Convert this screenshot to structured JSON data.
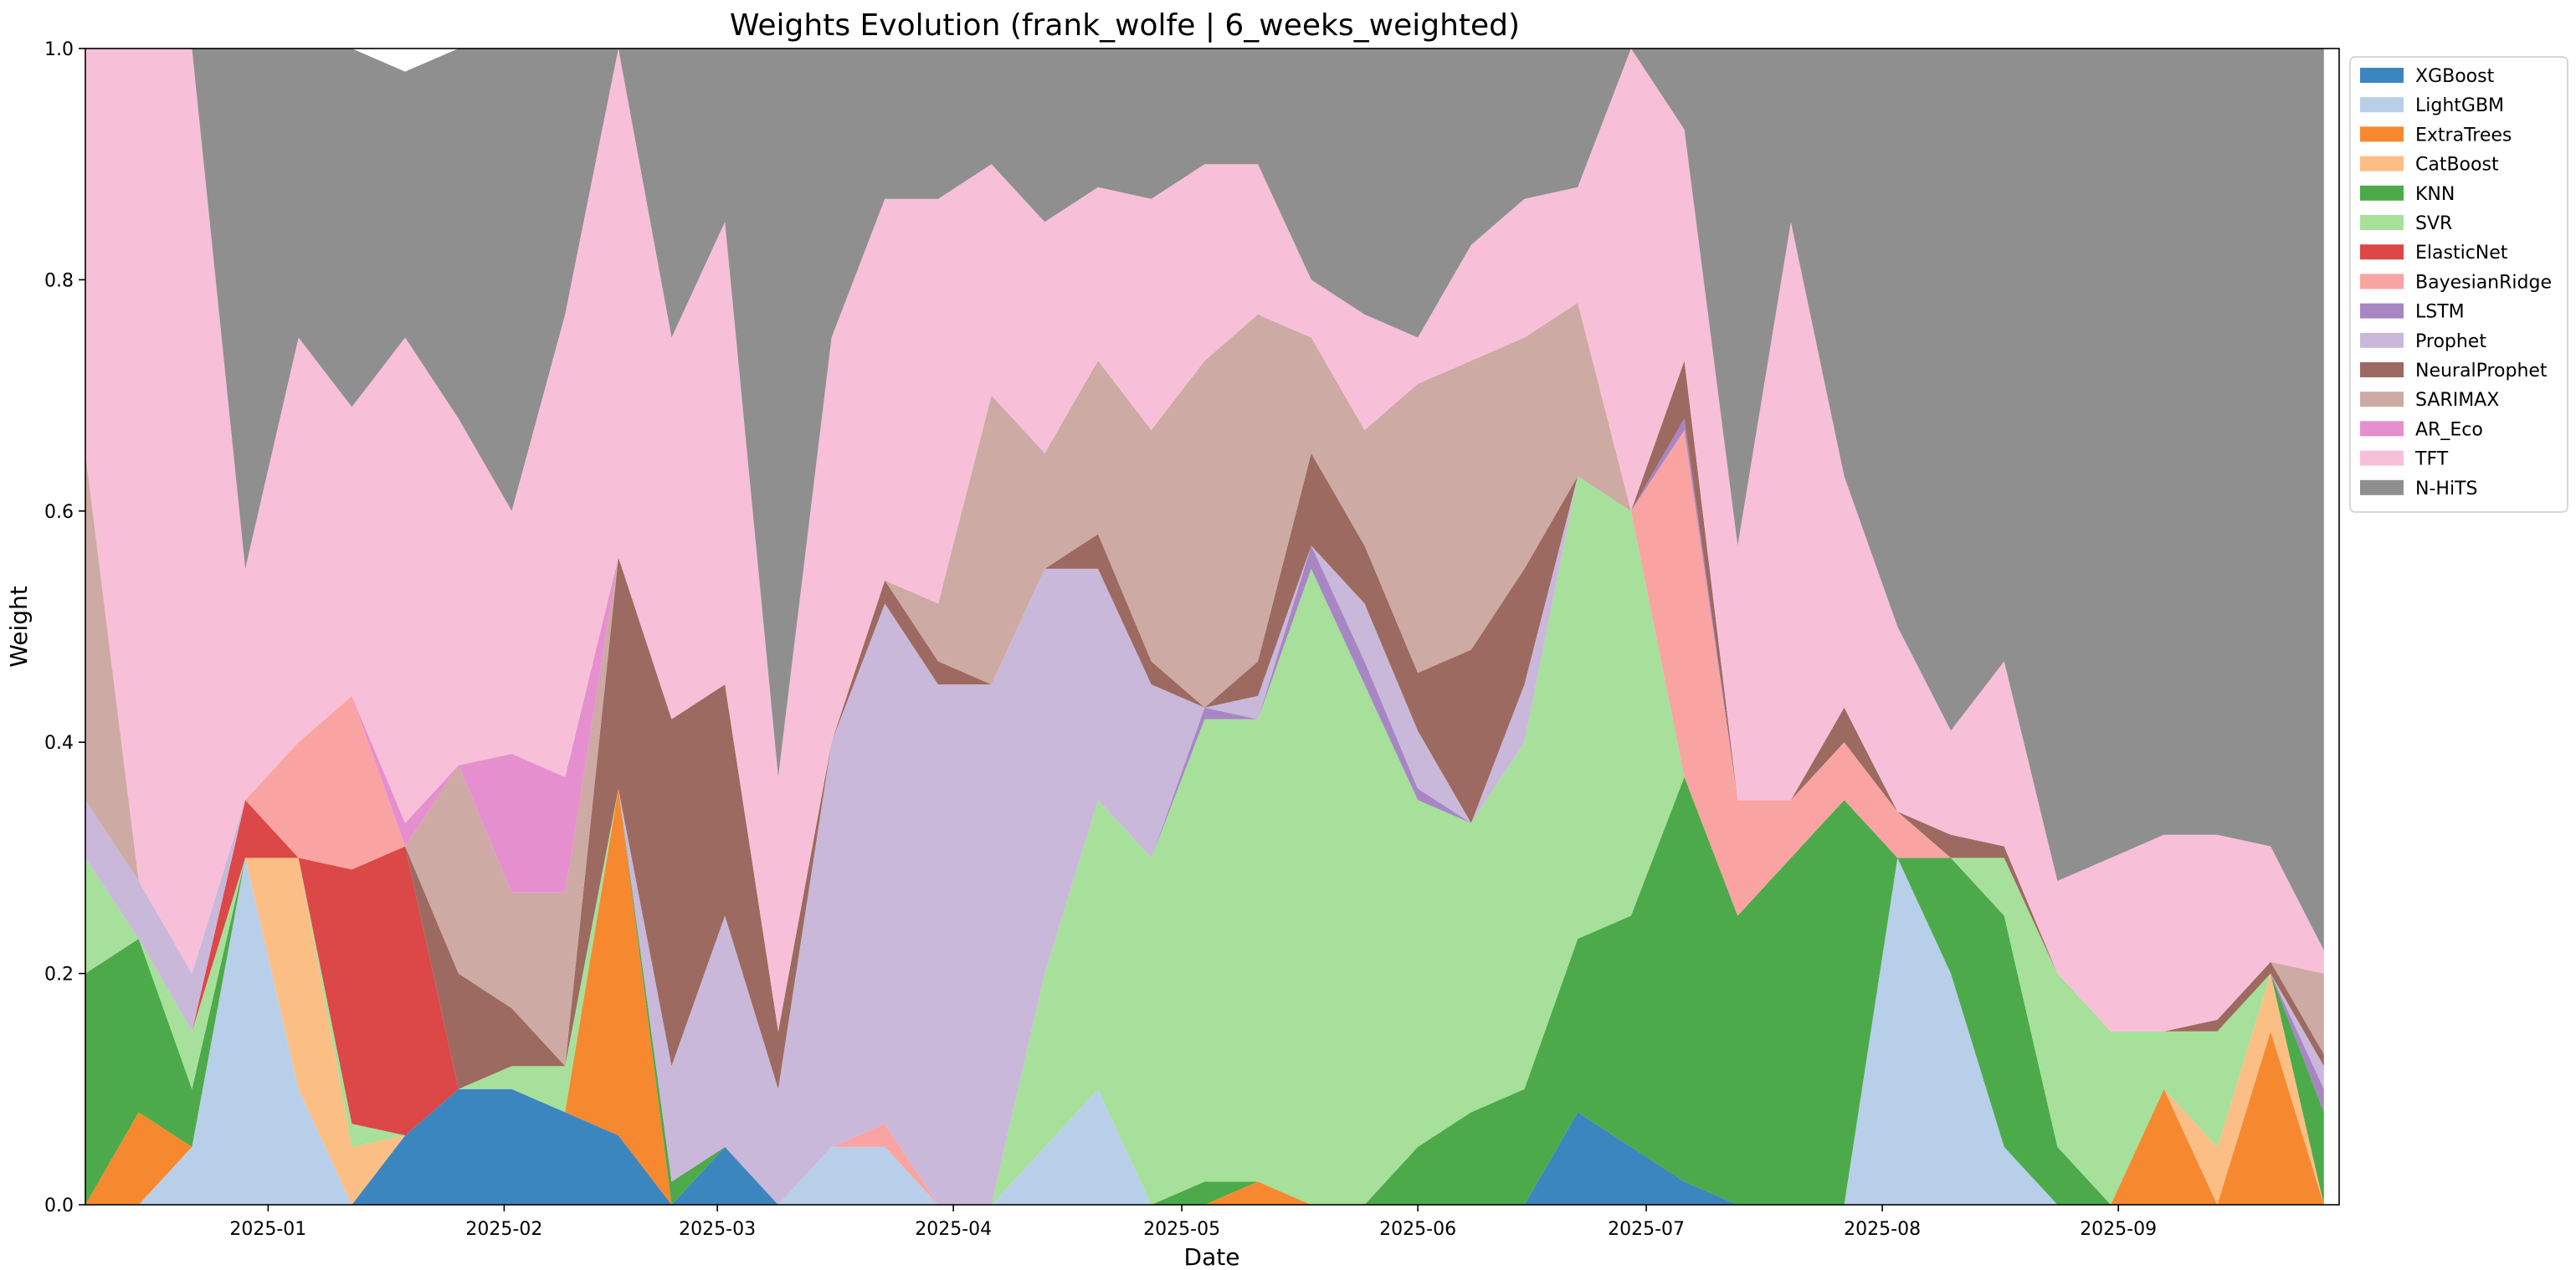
{
  "chart_data": {
    "type": "area",
    "stacked": true,
    "title": "Weights Evolution (frank_wolfe | 6_weeks_weighted)",
    "xlabel": "Date",
    "ylabel": "Weight",
    "ylim": [
      0,
      1
    ],
    "y_ticks": [
      "0.0",
      "0.2",
      "0.4",
      "0.6",
      "0.8",
      "1.0"
    ],
    "x_tick_labels": [
      "2025-01",
      "2025-02",
      "2025-03",
      "2025-04",
      "2025-05",
      "2025-06",
      "2025-07",
      "2025-08",
      "2025-09"
    ],
    "x_tick_dates": [
      "2025-01-01",
      "2025-02-01",
      "2025-03-01",
      "2025-04-01",
      "2025-05-01",
      "2025-06-01",
      "2025-07-01",
      "2025-08-01",
      "2025-09-01"
    ],
    "x_range": [
      "2024-12-08",
      "2025-09-30"
    ],
    "legend_position": "outside right, top",
    "grid": false,
    "x": [
      "2024-12-08",
      "2024-12-15",
      "2024-12-22",
      "2024-12-29",
      "2025-01-05",
      "2025-01-12",
      "2025-01-19",
      "2025-01-26",
      "2025-02-02",
      "2025-02-09",
      "2025-02-16",
      "2025-02-23",
      "2025-03-02",
      "2025-03-09",
      "2025-03-16",
      "2025-03-23",
      "2025-03-30",
      "2025-04-06",
      "2025-04-13",
      "2025-04-20",
      "2025-04-27",
      "2025-05-04",
      "2025-05-11",
      "2025-05-18",
      "2025-05-25",
      "2025-06-01",
      "2025-06-08",
      "2025-06-15",
      "2025-06-22",
      "2025-06-29",
      "2025-07-06",
      "2025-07-13",
      "2025-07-20",
      "2025-07-27",
      "2025-08-03",
      "2025-08-10",
      "2025-08-17",
      "2025-08-24",
      "2025-08-31",
      "2025-09-07",
      "2025-09-14",
      "2025-09-21",
      "2025-09-28"
    ],
    "series": [
      {
        "name": "XGBoost",
        "color": "#3c86bf",
        "values": [
          0.0,
          0.0,
          0.0,
          0.0,
          0.0,
          0.0,
          0.06,
          0.1,
          0.1,
          0.08,
          0.06,
          0.0,
          0.05,
          0.0,
          0.0,
          0.0,
          0.0,
          0.0,
          0.0,
          0.0,
          0.0,
          0.0,
          0.0,
          0.0,
          0.0,
          0.0,
          0.0,
          0.0,
          0.08,
          0.05,
          0.02,
          0.0,
          0.0,
          0.0,
          0.0,
          0.0,
          0.0,
          0.0,
          0.0,
          0.0,
          0.0,
          0.0,
          0.0
        ]
      },
      {
        "name": "LightGBM",
        "color": "#b8cfe9",
        "values": [
          0.0,
          0.0,
          0.05,
          0.3,
          0.1,
          0.0,
          0.0,
          0.0,
          0.0,
          0.0,
          0.0,
          0.0,
          0.0,
          0.0,
          0.05,
          0.05,
          0.0,
          0.0,
          0.05,
          0.1,
          0.0,
          0.0,
          0.0,
          0.0,
          0.0,
          0.0,
          0.0,
          0.0,
          0.0,
          0.0,
          0.0,
          0.0,
          0.0,
          0.0,
          0.3,
          0.2,
          0.05,
          0.0,
          0.0,
          0.0,
          0.0,
          0.0,
          0.0
        ]
      },
      {
        "name": "ExtraTrees",
        "color": "#f6892f",
        "values": [
          0.0,
          0.08,
          0.0,
          0.0,
          0.0,
          0.0,
          0.0,
          0.0,
          0.0,
          0.0,
          0.3,
          0.0,
          0.0,
          0.0,
          0.0,
          0.0,
          0.0,
          0.0,
          0.0,
          0.0,
          0.0,
          0.0,
          0.02,
          0.0,
          0.0,
          0.0,
          0.0,
          0.0,
          0.0,
          0.0,
          0.0,
          0.0,
          0.0,
          0.0,
          0.0,
          0.0,
          0.0,
          0.0,
          0.0,
          0.1,
          0.0,
          0.15,
          0.0
        ]
      },
      {
        "name": "CatBoost",
        "color": "#fbbf86",
        "values": [
          0.0,
          0.0,
          0.0,
          0.0,
          0.2,
          0.05,
          0.0,
          0.0,
          0.0,
          0.0,
          0.0,
          0.0,
          0.0,
          0.0,
          0.0,
          0.0,
          0.0,
          0.0,
          0.0,
          0.0,
          0.0,
          0.0,
          0.0,
          0.0,
          0.0,
          0.0,
          0.0,
          0.0,
          0.0,
          0.0,
          0.0,
          0.0,
          0.0,
          0.0,
          0.0,
          0.0,
          0.0,
          0.0,
          0.0,
          0.0,
          0.05,
          0.05,
          0.0
        ]
      },
      {
        "name": "KNN",
        "color": "#4daa4a",
        "values": [
          0.2,
          0.15,
          0.05,
          0.0,
          0.0,
          0.0,
          0.0,
          0.0,
          0.0,
          0.0,
          0.0,
          0.02,
          0.0,
          0.0,
          0.0,
          0.0,
          0.0,
          0.0,
          0.0,
          0.0,
          0.0,
          0.02,
          0.0,
          0.0,
          0.0,
          0.05,
          0.08,
          0.1,
          0.15,
          0.2,
          0.35,
          0.25,
          0.3,
          0.35,
          0.0,
          0.1,
          0.2,
          0.05,
          0.0,
          0.0,
          0.0,
          0.0,
          0.08
        ]
      },
      {
        "name": "SVR",
        "color": "#a6e09a",
        "values": [
          0.1,
          0.0,
          0.05,
          0.0,
          0.0,
          0.02,
          0.0,
          0.0,
          0.02,
          0.04,
          0.0,
          0.0,
          0.0,
          0.0,
          0.0,
          0.0,
          0.0,
          0.0,
          0.15,
          0.25,
          0.3,
          0.4,
          0.4,
          0.55,
          0.45,
          0.3,
          0.25,
          0.3,
          0.4,
          0.35,
          0.0,
          0.0,
          0.0,
          0.0,
          0.0,
          0.0,
          0.05,
          0.15,
          0.15,
          0.05,
          0.1,
          0.0,
          0.0
        ]
      },
      {
        "name": "ElasticNet",
        "color": "#dc4747",
        "values": [
          0.0,
          0.0,
          0.0,
          0.05,
          0.0,
          0.22,
          0.25,
          0.0,
          0.0,
          0.0,
          0.0,
          0.0,
          0.0,
          0.0,
          0.0,
          0.0,
          0.0,
          0.0,
          0.0,
          0.0,
          0.0,
          0.0,
          0.0,
          0.0,
          0.0,
          0.0,
          0.0,
          0.0,
          0.0,
          0.0,
          0.0,
          0.0,
          0.0,
          0.0,
          0.0,
          0.0,
          0.0,
          0.0,
          0.0,
          0.0,
          0.0,
          0.0,
          0.0
        ]
      },
      {
        "name": "BayesianRidge",
        "color": "#f9a4a2",
        "values": [
          0.0,
          0.0,
          0.0,
          0.0,
          0.1,
          0.15,
          0.0,
          0.0,
          0.0,
          0.0,
          0.0,
          0.0,
          0.0,
          0.0,
          0.0,
          0.02,
          0.0,
          0.0,
          0.0,
          0.0,
          0.0,
          0.0,
          0.0,
          0.0,
          0.0,
          0.0,
          0.0,
          0.0,
          0.0,
          0.0,
          0.3,
          0.1,
          0.05,
          0.05,
          0.04,
          0.0,
          0.0,
          0.0,
          0.0,
          0.0,
          0.0,
          0.0,
          0.0
        ]
      },
      {
        "name": "LSTM",
        "color": "#a886c4",
        "values": [
          0.0,
          0.0,
          0.0,
          0.0,
          0.0,
          0.0,
          0.0,
          0.0,
          0.0,
          0.0,
          0.0,
          0.0,
          0.0,
          0.0,
          0.0,
          0.0,
          0.0,
          0.0,
          0.0,
          0.0,
          0.0,
          0.01,
          0.0,
          0.02,
          0.02,
          0.01,
          0.0,
          0.0,
          0.0,
          0.0,
          0.01,
          0.0,
          0.0,
          0.0,
          0.0,
          0.0,
          0.0,
          0.0,
          0.0,
          0.0,
          0.0,
          0.0,
          0.02
        ]
      },
      {
        "name": "Prophet",
        "color": "#cab8da",
        "values": [
          0.05,
          0.05,
          0.05,
          0.0,
          0.0,
          0.0,
          0.0,
          0.0,
          0.0,
          0.0,
          0.0,
          0.1,
          0.2,
          0.1,
          0.35,
          0.45,
          0.45,
          0.45,
          0.35,
          0.2,
          0.15,
          0.0,
          0.02,
          0.0,
          0.05,
          0.05,
          0.0,
          0.05,
          0.0,
          0.0,
          0.0,
          0.0,
          0.0,
          0.0,
          0.0,
          0.0,
          0.0,
          0.0,
          0.0,
          0.0,
          0.0,
          0.0,
          0.02
        ]
      },
      {
        "name": "NeuralProphet",
        "color": "#9c6a60",
        "values": [
          0.0,
          0.0,
          0.0,
          0.0,
          0.0,
          0.0,
          0.0,
          0.1,
          0.05,
          0.0,
          0.2,
          0.3,
          0.2,
          0.05,
          0.0,
          0.02,
          0.02,
          0.0,
          0.0,
          0.03,
          0.02,
          0.0,
          0.03,
          0.08,
          0.05,
          0.05,
          0.15,
          0.1,
          0.0,
          0.0,
          0.05,
          0.0,
          0.0,
          0.03,
          0.0,
          0.02,
          0.01,
          0.0,
          0.0,
          0.0,
          0.01,
          0.01,
          0.01
        ]
      },
      {
        "name": "SARIMAX",
        "color": "#cdaaa4",
        "values": [
          0.3,
          0.0,
          0.0,
          0.0,
          0.0,
          0.0,
          0.0,
          0.18,
          0.1,
          0.15,
          0.0,
          0.0,
          0.0,
          0.0,
          0.0,
          0.0,
          0.05,
          0.25,
          0.1,
          0.15,
          0.2,
          0.3,
          0.3,
          0.1,
          0.1,
          0.25,
          0.25,
          0.2,
          0.15,
          0.0,
          0.0,
          0.0,
          0.0,
          0.0,
          0.0,
          0.0,
          0.0,
          0.0,
          0.0,
          0.0,
          0.0,
          0.0,
          0.07
        ]
      },
      {
        "name": "AR_Eco",
        "color": "#e68fcf",
        "values": [
          0.0,
          0.0,
          0.0,
          0.0,
          0.0,
          0.0,
          0.02,
          0.0,
          0.12,
          0.1,
          0.0,
          0.0,
          0.0,
          0.0,
          0.0,
          0.0,
          0.0,
          0.0,
          0.0,
          0.0,
          0.0,
          0.0,
          0.0,
          0.0,
          0.0,
          0.0,
          0.0,
          0.0,
          0.0,
          0.0,
          0.0,
          0.0,
          0.0,
          0.0,
          0.0,
          0.0,
          0.0,
          0.0,
          0.0,
          0.0,
          0.0,
          0.0,
          0.0
        ]
      },
      {
        "name": "TFT",
        "color": "#f7c0d8",
        "values": [
          0.35,
          0.72,
          0.8,
          0.2,
          0.35,
          0.25,
          0.42,
          0.3,
          0.21,
          0.4,
          0.45,
          0.33,
          0.4,
          0.22,
          0.35,
          0.33,
          0.35,
          0.2,
          0.2,
          0.15,
          0.2,
          0.17,
          0.13,
          0.05,
          0.1,
          0.04,
          0.1,
          0.12,
          0.1,
          0.4,
          0.2,
          0.22,
          0.5,
          0.2,
          0.16,
          0.09,
          0.16,
          0.08,
          0.15,
          0.17,
          0.16,
          0.1,
          0.02
        ]
      },
      {
        "name": "N-HiTS",
        "color": "#8f8f8f",
        "values": [
          0.0,
          0.0,
          0.0,
          0.45,
          0.25,
          0.31,
          0.23,
          0.32,
          0.4,
          0.23,
          0.0,
          0.25,
          0.15,
          0.63,
          0.25,
          0.15,
          0.13,
          0.1,
          0.15,
          0.12,
          0.13,
          0.1,
          0.1,
          0.2,
          0.23,
          0.25,
          0.17,
          0.13,
          0.12,
          0.0,
          0.07,
          0.43,
          0.15,
          0.37,
          0.5,
          0.59,
          0.53,
          0.72,
          0.7,
          0.68,
          0.68,
          0.74,
          0.78
        ]
      }
    ]
  }
}
